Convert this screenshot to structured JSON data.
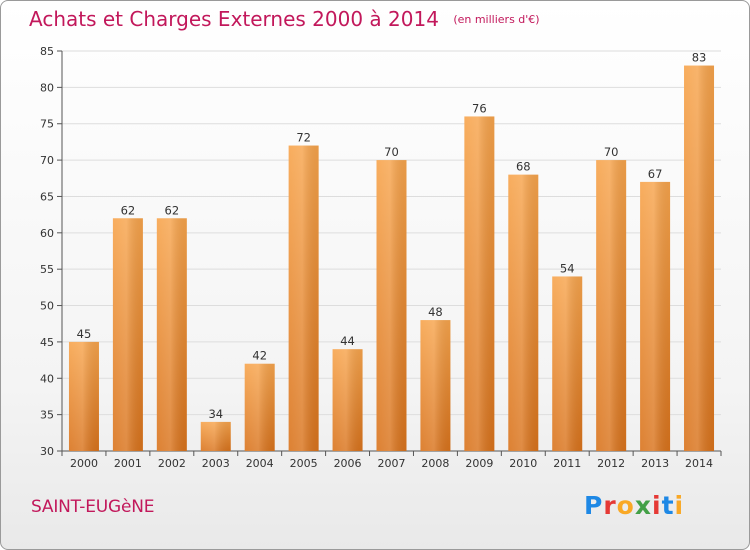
{
  "header": {
    "title": "Achats et Charges Externes 2000 à 2014",
    "subtitle": "(en milliers d'€)"
  },
  "footer": {
    "town": "SAINT-EUGèNE",
    "logo_text": "Proxiti",
    "logo_colors": [
      "#1e88e5",
      "#e53935",
      "#f9a825",
      "#43a047",
      "#e53935",
      "#1e88e5",
      "#f9a825"
    ]
  },
  "colors": {
    "bar_top": "#f7a44c",
    "bar_bottom": "#d9731c",
    "title": "#c2185b",
    "grid": "#dddddd"
  },
  "chart_data": {
    "type": "bar",
    "title": "Achats et Charges Externes 2000 à 2014",
    "subtitle": "(en milliers d'€)",
    "categories": [
      "2000",
      "2001",
      "2002",
      "2003",
      "2004",
      "2005",
      "2006",
      "2007",
      "2008",
      "2009",
      "2010",
      "2011",
      "2012",
      "2013",
      "2014"
    ],
    "values": [
      45,
      62,
      62,
      34,
      42,
      72,
      44,
      70,
      48,
      76,
      68,
      54,
      70,
      67,
      83
    ],
    "ylim": [
      30,
      85
    ],
    "yticks": [
      30,
      35,
      40,
      45,
      50,
      55,
      60,
      65,
      70,
      75,
      80,
      85
    ],
    "grid": true,
    "data_labels": true
  }
}
